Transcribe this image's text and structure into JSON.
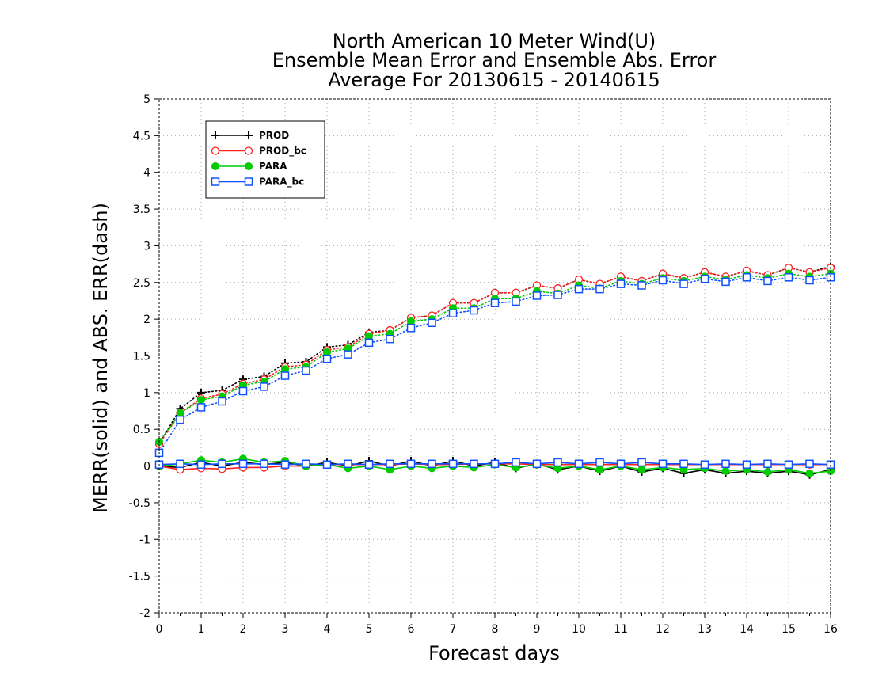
{
  "chart_data": {
    "type": "line",
    "title": [
      "North American 10 Meter Wind(U)",
      "Ensemble Mean Error and Ensemble Abs. Error",
      "Average For 20130615 - 20140615"
    ],
    "xlabel": "Forecast days",
    "ylabel": "MERR(solid) and ABS. ERR(dash)",
    "xlim": [
      0,
      16
    ],
    "ylim": [
      -2,
      5
    ],
    "xticks": [
      "0",
      "1",
      "2",
      "3",
      "4",
      "5",
      "6",
      "7",
      "8",
      "9",
      "10",
      "11",
      "12",
      "13",
      "14",
      "15",
      "16"
    ],
    "yticks": [
      "-2",
      "-1.5",
      "-1",
      "-0.5",
      "0",
      "0.5",
      "1",
      "1.5",
      "2",
      "2.5",
      "3",
      "3.5",
      "4",
      "4.5",
      "5"
    ],
    "grid": true,
    "legend_position": "top-left",
    "x": [
      0,
      0.5,
      1,
      1.5,
      2,
      2.5,
      3,
      3.5,
      4,
      4.5,
      5,
      5.5,
      6,
      6.5,
      7,
      7.5,
      8,
      8.5,
      9,
      9.5,
      10,
      10.5,
      11,
      11.5,
      12,
      12.5,
      13,
      13.5,
      14,
      14.5,
      15,
      15.5,
      16
    ],
    "series": [
      {
        "name": "PROD",
        "color": "#000000",
        "marker": "plus",
        "abs_error": [
          0.3,
          0.78,
          1.0,
          1.03,
          1.18,
          1.22,
          1.4,
          1.42,
          1.62,
          1.65,
          1.82,
          1.85,
          2.02,
          2.05,
          2.22,
          2.22,
          2.36,
          2.36,
          2.46,
          2.42,
          2.54,
          2.48,
          2.58,
          2.52,
          2.62,
          2.56,
          2.64,
          2.58,
          2.66,
          2.6,
          2.7,
          2.64,
          2.72
        ],
        "mean_error": [
          0.0,
          -0.02,
          0.05,
          0.0,
          0.05,
          0.02,
          0.05,
          0.0,
          0.05,
          0.0,
          0.07,
          0.0,
          0.07,
          0.0,
          0.07,
          0.0,
          0.05,
          -0.03,
          0.03,
          -0.05,
          0.0,
          -0.07,
          0.0,
          -0.08,
          -0.03,
          -0.1,
          -0.05,
          -0.1,
          -0.07,
          -0.1,
          -0.07,
          -0.12,
          -0.05
        ]
      },
      {
        "name": "PROD_bc",
        "color": "#ff2020",
        "marker": "open-circle",
        "abs_error": [
          0.3,
          0.72,
          0.92,
          0.98,
          1.12,
          1.18,
          1.35,
          1.38,
          1.58,
          1.62,
          1.8,
          1.85,
          2.02,
          2.05,
          2.22,
          2.22,
          2.36,
          2.36,
          2.46,
          2.42,
          2.54,
          2.48,
          2.58,
          2.52,
          2.62,
          2.56,
          2.64,
          2.58,
          2.66,
          2.6,
          2.7,
          2.64,
          2.7
        ],
        "mean_error": [
          0.0,
          -0.05,
          -0.03,
          -0.04,
          -0.02,
          -0.02,
          0.0,
          0.0,
          0.02,
          0.02,
          0.02,
          0.02,
          0.03,
          0.02,
          0.02,
          0.03,
          0.03,
          0.03,
          0.02,
          0.02,
          0.02,
          0.02,
          0.02,
          0.02,
          0.02,
          0.02,
          0.02,
          0.02,
          0.02,
          0.02,
          0.02,
          0.02,
          0.02
        ]
      },
      {
        "name": "PARA",
        "color": "#00cc00",
        "marker": "filled-circle",
        "abs_error": [
          0.33,
          0.72,
          0.9,
          0.95,
          1.1,
          1.15,
          1.32,
          1.35,
          1.55,
          1.6,
          1.77,
          1.8,
          1.97,
          2.0,
          2.15,
          2.15,
          2.28,
          2.28,
          2.38,
          2.35,
          2.46,
          2.42,
          2.52,
          2.48,
          2.56,
          2.52,
          2.58,
          2.54,
          2.6,
          2.56,
          2.62,
          2.58,
          2.62
        ],
        "mean_error": [
          0.0,
          0.03,
          0.08,
          0.05,
          0.1,
          0.05,
          0.07,
          0.0,
          0.02,
          -0.03,
          0.0,
          -0.05,
          0.0,
          -0.03,
          0.0,
          -0.02,
          0.02,
          -0.02,
          0.02,
          -0.03,
          0.0,
          -0.05,
          0.0,
          -0.05,
          -0.02,
          -0.05,
          -0.03,
          -0.07,
          -0.05,
          -0.08,
          -0.05,
          -0.1,
          -0.07
        ]
      },
      {
        "name": "PARA_bc",
        "color": "#1050ff",
        "marker": "open-square",
        "abs_error": [
          0.18,
          0.63,
          0.8,
          0.88,
          1.02,
          1.08,
          1.23,
          1.3,
          1.46,
          1.52,
          1.68,
          1.73,
          1.88,
          1.95,
          2.08,
          2.12,
          2.22,
          2.24,
          2.32,
          2.33,
          2.41,
          2.41,
          2.48,
          2.46,
          2.53,
          2.48,
          2.55,
          2.51,
          2.57,
          2.52,
          2.57,
          2.53,
          2.57
        ],
        "mean_error": [
          0.02,
          0.03,
          0.02,
          0.03,
          0.03,
          0.03,
          0.02,
          0.03,
          0.02,
          0.03,
          0.02,
          0.03,
          0.03,
          0.03,
          0.03,
          0.03,
          0.03,
          0.05,
          0.03,
          0.05,
          0.03,
          0.05,
          0.03,
          0.05,
          0.03,
          0.03,
          0.02,
          0.03,
          0.02,
          0.03,
          0.02,
          0.03,
          0.02
        ]
      }
    ]
  }
}
